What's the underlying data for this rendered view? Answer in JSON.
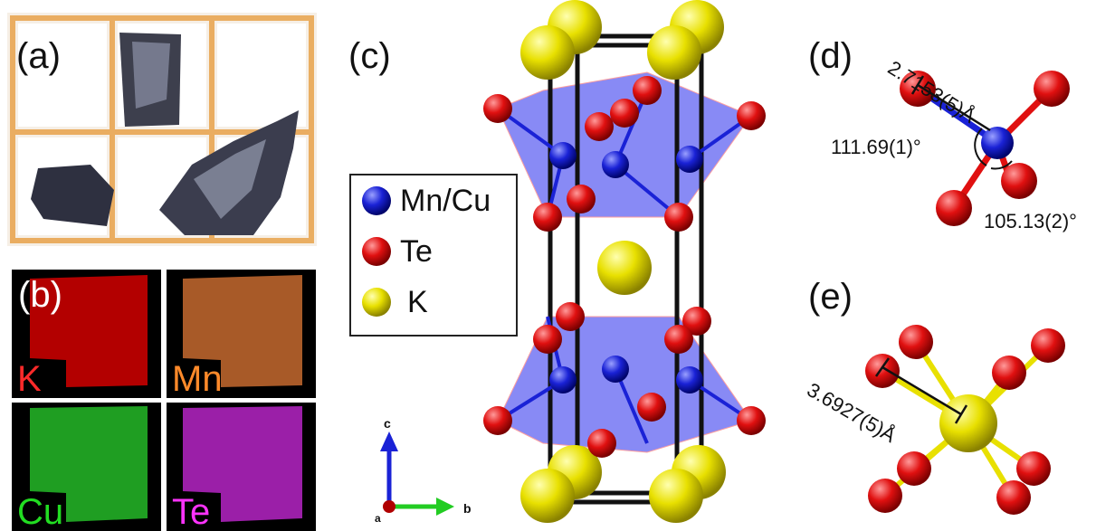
{
  "panels": {
    "a": "(a)",
    "b": "(b)",
    "c": "(c)",
    "d": "(d)",
    "e": "(e)"
  },
  "eds_maps": [
    {
      "element": "K",
      "color": "#ff2a2a",
      "fill": "#b30000"
    },
    {
      "element": "Mn",
      "color": "#ff8a2a",
      "fill": "#a85a28"
    },
    {
      "element": "Cu",
      "color": "#22dd22",
      "fill": "#1f9e22"
    },
    {
      "element": "Te",
      "color": "#ff33ff",
      "fill": "#9b1fa8"
    }
  ],
  "legend": {
    "items": [
      {
        "label": "Mn/Cu",
        "color": "#1a22d6"
      },
      {
        "label": "Te",
        "color": "#e01010"
      },
      {
        "label": "K",
        "color": "#e8e000"
      }
    ]
  },
  "axes": {
    "c": "c",
    "b": "b",
    "a": "a"
  },
  "measurements": {
    "bond_d": "2.7153(5)Å",
    "angle_1": "111.69(1)°",
    "angle_2": "105.13(2)°",
    "bond_e": "3.6927(5)Å"
  },
  "colors": {
    "mn_cu": "#1a22d6",
    "te": "#e01010",
    "k": "#e8e000",
    "polyhedron": "#4a4cf0",
    "grid": "#e8a24a"
  }
}
